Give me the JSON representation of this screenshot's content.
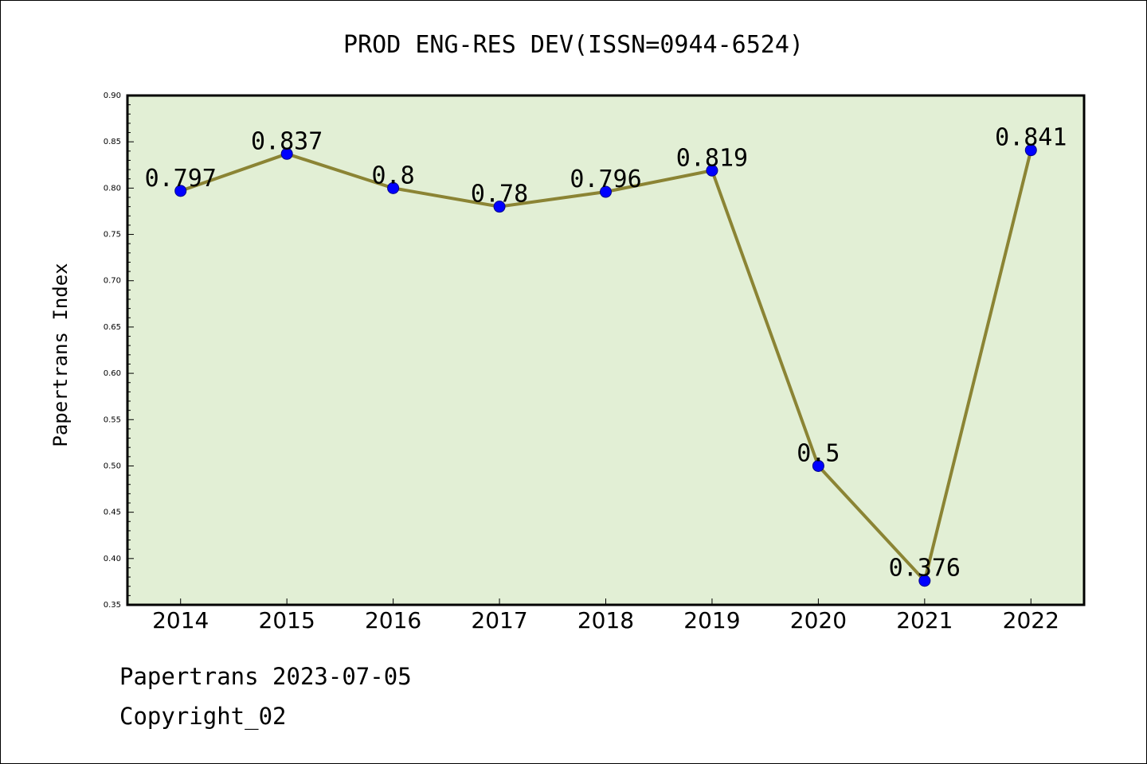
{
  "chart_data": {
    "type": "line",
    "title": "PROD ENG-RES DEV(ISSN=0944-6524)",
    "xlabel": "",
    "ylabel": "Papertrans Index",
    "categories": [
      "2014",
      "2015",
      "2016",
      "2017",
      "2018",
      "2019",
      "2020",
      "2021",
      "2022"
    ],
    "series": [
      {
        "values": [
          0.797,
          0.837,
          0.8,
          0.78,
          0.796,
          0.819,
          0.5,
          0.376,
          0.841
        ],
        "labels": [
          "0.797",
          "0.837",
          "0.8",
          "0.78",
          "0.796",
          "0.819",
          "0.5",
          "0.376",
          "0.841"
        ]
      }
    ],
    "ylim": [
      0.35,
      0.9
    ],
    "yticks": [
      "0.35",
      "0.40",
      "0.45",
      "0.50",
      "0.55",
      "0.60",
      "0.65",
      "0.70",
      "0.75",
      "0.80",
      "0.85",
      "0.90"
    ],
    "grid": false,
    "legend": "none",
    "colors": {
      "plot_background": "#e2efd5",
      "line": "#8b8434",
      "marker": "#0000ff"
    }
  },
  "footer": {
    "line1": "Papertrans 2023-07-05",
    "line2": "Copyright_02"
  }
}
